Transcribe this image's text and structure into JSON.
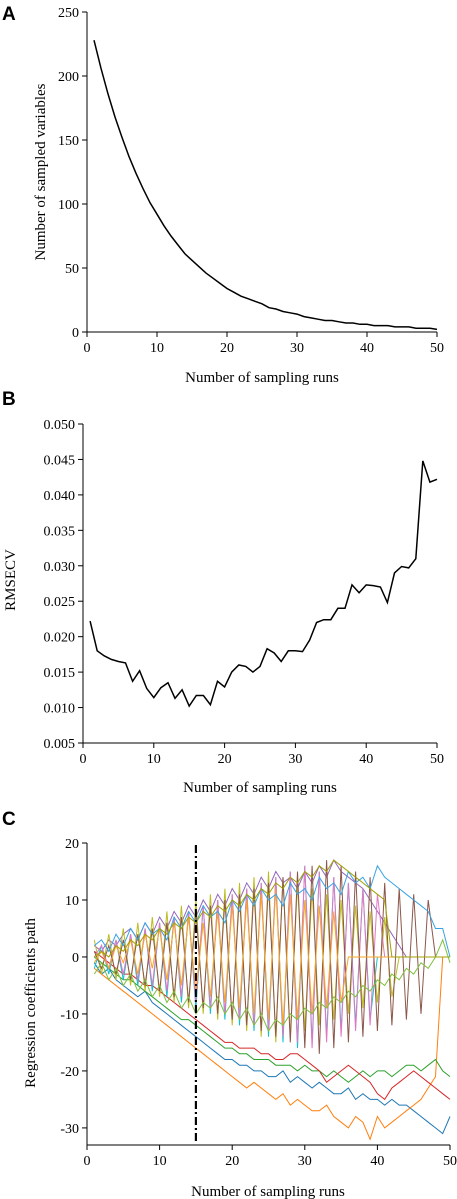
{
  "chart_data": [
    {
      "panel": "A",
      "type": "line",
      "xlabel": "Number of sampling runs",
      "ylabel": "Number of sampled variables",
      "xlim": [
        0,
        50
      ],
      "ylim": [
        0,
        250
      ],
      "xticks": [
        "0",
        "10",
        "20",
        "30",
        "40",
        "50"
      ],
      "yticks": [
        "0",
        "50",
        "100",
        "150",
        "200",
        "250"
      ],
      "x": [
        1,
        2,
        3,
        4,
        5,
        6,
        7,
        8,
        9,
        10,
        11,
        12,
        13,
        14,
        15,
        16,
        17,
        18,
        19,
        20,
        21,
        22,
        23,
        24,
        25,
        26,
        27,
        28,
        29,
        30,
        31,
        32,
        33,
        34,
        35,
        36,
        37,
        38,
        39,
        40,
        41,
        42,
        43,
        44,
        45,
        46,
        47,
        48,
        49,
        50
      ],
      "values": [
        228,
        206,
        186,
        168,
        152,
        137,
        124,
        112,
        101,
        92,
        83,
        75,
        68,
        61,
        56,
        51,
        46,
        42,
        38,
        34,
        31,
        28,
        26,
        24,
        22,
        19,
        18,
        16,
        15,
        14,
        12,
        11,
        10,
        9,
        9,
        8,
        7,
        7,
        6,
        6,
        5,
        5,
        5,
        4,
        4,
        4,
        3,
        3,
        3,
        2
      ]
    },
    {
      "panel": "B",
      "type": "line",
      "xlabel": "Number of sampling runs",
      "ylabel": "RMSECV",
      "xlim": [
        0,
        50
      ],
      "ylim": [
        0.005,
        0.05
      ],
      "xticks": [
        "0",
        "10",
        "20",
        "30",
        "40",
        "50"
      ],
      "yticks": [
        "0.005",
        "0.010",
        "0.015",
        "0.020",
        "0.025",
        "0.030",
        "0.035",
        "0.040",
        "0.045",
        "0.050"
      ],
      "x": [
        1,
        2,
        3,
        4,
        5,
        6,
        7,
        8,
        9,
        10,
        11,
        12,
        13,
        14,
        15,
        16,
        17,
        18,
        19,
        20,
        21,
        22,
        23,
        24,
        25,
        26,
        27,
        28,
        29,
        30,
        31,
        32,
        33,
        34,
        35,
        36,
        37,
        38,
        39,
        40,
        41,
        42,
        43,
        44,
        45,
        46,
        47,
        48,
        49,
        50
      ],
      "values": [
        0.0222,
        0.018,
        0.0173,
        0.0168,
        0.0165,
        0.0163,
        0.0137,
        0.0152,
        0.0127,
        0.0114,
        0.0128,
        0.0135,
        0.0113,
        0.0125,
        0.0102,
        0.0117,
        0.0117,
        0.0104,
        0.0137,
        0.0129,
        0.015,
        0.016,
        0.0158,
        0.015,
        0.0158,
        0.0183,
        0.0177,
        0.0165,
        0.018,
        0.018,
        0.0179,
        0.0195,
        0.022,
        0.0224,
        0.0224,
        0.024,
        0.024,
        0.0273,
        0.0262,
        0.0273,
        0.0272,
        0.027,
        0.0248,
        0.029,
        0.0299,
        0.0297,
        0.031,
        0.0448,
        0.0418,
        0.0422
      ]
    },
    {
      "panel": "C",
      "type": "line",
      "xlabel": "Number of sampling runs",
      "ylabel": "Regression coefficients path",
      "xlim": [
        0,
        50
      ],
      "ylim": [
        -33,
        20
      ],
      "xticks": [
        "0",
        "10",
        "20",
        "30",
        "40",
        "50"
      ],
      "yticks": [
        "20",
        "10",
        "0",
        "-10",
        "-20",
        "-30"
      ],
      "optimal_run": 15,
      "colors": [
        "#1f77b4",
        "#ff7f0e",
        "#2ca02c",
        "#d62728",
        "#9467bd",
        "#17becf",
        "#bcbd22",
        "#e377c2",
        "#8c564b",
        "#f5a623",
        "#3aa3e3",
        "#7fbf3f",
        "#a0a000"
      ],
      "series": [
        {
          "values": [
            -1,
            -3,
            -2,
            -4,
            -5,
            -6,
            -7,
            -6,
            -8,
            -9,
            -10,
            -11,
            -12,
            -13,
            -14,
            -15,
            -16,
            -17,
            -18,
            -18,
            -19,
            -19,
            -20,
            -20,
            -21,
            -21,
            -20,
            -22,
            -21,
            -22,
            -23,
            -22,
            -23,
            -24,
            -24,
            -23,
            -25,
            -24,
            -25,
            -25,
            -26,
            -25,
            -26,
            -26,
            -27,
            -28,
            -29,
            -30,
            -31,
            -28
          ]
        },
        {
          "values": [
            -2,
            -3,
            -4,
            -5,
            -6,
            -7,
            -8,
            -9,
            -10,
            -11,
            -12,
            -13,
            -14,
            -15,
            -16,
            -17,
            -18,
            -19,
            -20,
            -21,
            -22,
            -23,
            -22,
            -23,
            -24,
            -25,
            -24,
            -26,
            -25,
            -26,
            -27,
            -27,
            -26,
            -28,
            -29,
            -30,
            -28,
            -29,
            -32,
            -28,
            -30,
            -29,
            -28,
            -27,
            -26,
            -25,
            -23,
            -21,
            0,
            0
          ]
        },
        {
          "values": [
            0,
            -1,
            -2,
            -3,
            -4,
            -4,
            -5,
            -6,
            -7,
            -8,
            -9,
            -10,
            -11,
            -11,
            -12,
            -13,
            -14,
            -15,
            -16,
            -16,
            -17,
            -17,
            -18,
            -18,
            -18,
            -19,
            -19,
            -19,
            -20,
            -19,
            -20,
            -20,
            -21,
            -20,
            -21,
            -22,
            -21,
            -20,
            -21,
            -20,
            -20,
            -21,
            -20,
            -19,
            -19,
            -20,
            -19,
            -18,
            -20,
            -21
          ]
        },
        {
          "values": [
            1,
            0,
            -1,
            -2,
            -3,
            -3,
            -4,
            -5,
            -5,
            -6,
            -7,
            -8,
            -9,
            -10,
            -11,
            -12,
            -13,
            -14,
            -15,
            -15,
            -16,
            -16,
            -16,
            -17,
            -17,
            -18,
            -18,
            -17,
            -17,
            -18,
            -19,
            -20,
            -22,
            -21,
            -20,
            -19,
            -20,
            -21,
            -22,
            -24,
            -25,
            -23,
            -22,
            -21,
            -20,
            -21,
            -22,
            -23,
            -24,
            -25
          ]
        },
        {
          "values": [
            2,
            1,
            3,
            2,
            4,
            5,
            3,
            6,
            4,
            7,
            5,
            8,
            6,
            9,
            7,
            10,
            8,
            11,
            9,
            12,
            10,
            13,
            11,
            14,
            12,
            15,
            13,
            14,
            12,
            15,
            13,
            16,
            14,
            17,
            15,
            14,
            13,
            12,
            10,
            8,
            6,
            4,
            2,
            0,
            0,
            0,
            0,
            0,
            0,
            0
          ]
        },
        {
          "values": [
            -2,
            2,
            -3,
            3,
            -4,
            4,
            -5,
            5,
            -6,
            6,
            -7,
            7,
            -8,
            8,
            -9,
            9,
            -10,
            10,
            -11,
            11,
            -12,
            12,
            -13,
            13,
            -14,
            14,
            -15,
            15,
            -16,
            16,
            -15,
            15,
            -14,
            14,
            -13,
            13,
            -12,
            12,
            -11,
            0,
            0,
            0,
            0,
            0,
            0,
            0,
            0,
            0,
            0,
            0
          ]
        },
        {
          "values": [
            3,
            -3,
            4,
            -4,
            5,
            -5,
            6,
            -6,
            7,
            -7,
            8,
            -8,
            9,
            -9,
            10,
            -10,
            11,
            -11,
            12,
            -12,
            13,
            -13,
            14,
            -14,
            15,
            -15,
            14,
            -14,
            13,
            -13,
            12,
            -12,
            11,
            -11,
            10,
            -10,
            9,
            -9,
            8,
            -8,
            7,
            -7,
            0,
            0,
            0,
            0,
            0,
            0,
            0,
            0
          ]
        },
        {
          "values": [
            0,
            2,
            -2,
            3,
            -3,
            4,
            -4,
            5,
            -5,
            6,
            -6,
            7,
            -7,
            8,
            -8,
            9,
            -9,
            10,
            -10,
            11,
            -11,
            12,
            -12,
            13,
            -13,
            14,
            -14,
            15,
            -15,
            16,
            -16,
            15,
            -15,
            14,
            -14,
            13,
            -13,
            12,
            -12,
            11,
            0,
            0,
            0,
            0,
            0,
            0,
            0,
            0,
            0,
            0
          ]
        },
        {
          "values": [
            1,
            -2,
            2,
            -3,
            3,
            -4,
            4,
            -5,
            5,
            -6,
            6,
            -7,
            7,
            -8,
            8,
            -9,
            9,
            -10,
            10,
            -11,
            11,
            -12,
            12,
            -13,
            13,
            -14,
            14,
            -15,
            15,
            -16,
            16,
            -17,
            17,
            -16,
            16,
            -15,
            15,
            -14,
            14,
            -13,
            13,
            -12,
            12,
            -11,
            11,
            -10,
            10,
            0,
            0,
            0
          ]
        },
        {
          "values": [
            -1,
            1,
            -2,
            2,
            -1,
            3,
            -3,
            4,
            -2,
            5,
            -4,
            6,
            -5,
            7,
            -6,
            6,
            -7,
            8,
            -8,
            9,
            -9,
            10,
            -10,
            11,
            -11,
            12,
            -12,
            11,
            -11,
            10,
            -10,
            9,
            -9,
            8,
            -8,
            0,
            0,
            0,
            0,
            0,
            0,
            0,
            0,
            0,
            0,
            0,
            0,
            0,
            0,
            0
          ]
        },
        {
          "values": [
            2,
            3,
            1,
            4,
            2,
            5,
            3,
            6,
            4,
            5,
            3,
            7,
            5,
            8,
            6,
            9,
            7,
            8,
            6,
            10,
            8,
            11,
            9,
            12,
            10,
            11,
            9,
            13,
            11,
            12,
            10,
            14,
            12,
            13,
            11,
            15,
            13,
            14,
            12,
            16,
            14,
            13,
            12,
            11,
            10,
            9,
            8,
            5,
            5,
            0
          ]
        },
        {
          "values": [
            -3,
            -1,
            -4,
            -2,
            -5,
            -3,
            -6,
            -4,
            -7,
            -5,
            -8,
            -6,
            -9,
            -7,
            -10,
            -8,
            -9,
            -7,
            -10,
            -8,
            -11,
            -9,
            -12,
            -10,
            -13,
            -11,
            -12,
            -10,
            -11,
            -9,
            -10,
            -8,
            -9,
            -7,
            -8,
            -6,
            -7,
            -5,
            -6,
            -4,
            -5,
            -3,
            -4,
            -2,
            -3,
            -1,
            -2,
            0,
            3,
            -1
          ]
        },
        {
          "values": [
            0,
            1,
            0,
            2,
            1,
            3,
            2,
            4,
            3,
            5,
            4,
            6,
            5,
            7,
            6,
            8,
            7,
            9,
            8,
            10,
            9,
            11,
            10,
            12,
            11,
            13,
            12,
            14,
            13,
            15,
            14,
            16,
            15,
            17,
            16,
            15,
            14,
            13,
            12,
            11,
            10,
            0,
            0,
            0,
            0,
            0,
            0,
            0,
            0,
            0
          ]
        }
      ]
    }
  ]
}
